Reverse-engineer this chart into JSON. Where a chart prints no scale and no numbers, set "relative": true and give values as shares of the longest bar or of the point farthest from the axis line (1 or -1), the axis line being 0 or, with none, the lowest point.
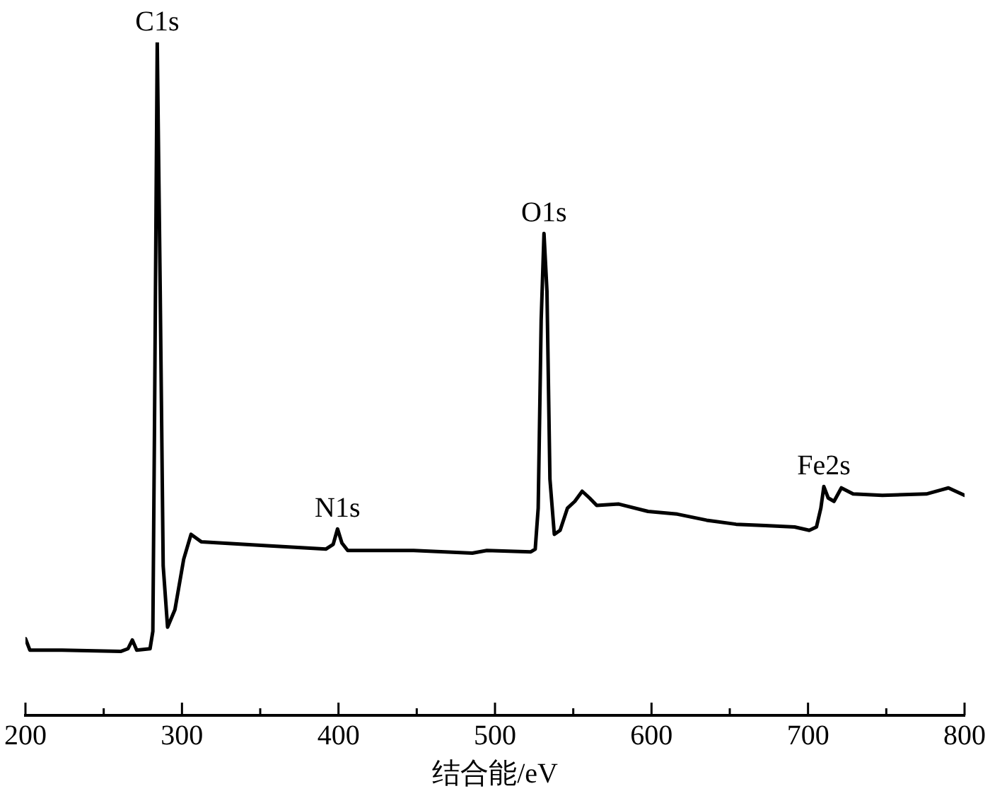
{
  "chart_data": {
    "type": "line",
    "xlabel": "结合能/eV",
    "relative": true,
    "xlim": [
      200,
      800
    ],
    "xticks": [
      200,
      {
        "value": 250,
        "label": null
      },
      300,
      {
        "value": 350,
        "label": null
      },
      400,
      {
        "value": 450,
        "label": null
      },
      500,
      {
        "value": 550,
        "label": null
      },
      600,
      {
        "value": 650,
        "label": null
      },
      700,
      {
        "value": 750,
        "label": null
      },
      800
    ],
    "annotations": [
      {
        "text": "C1s",
        "x": 284.2,
        "y": 1
      },
      {
        "text": "N1s",
        "x": 399.4,
        "y": 0.277
      },
      {
        "text": "O1s",
        "x": 531.3,
        "y": 0.716
      },
      {
        "text": "Fe2s",
        "x": 710.1,
        "y": 0.34
      }
    ],
    "grid": false,
    "legend": false,
    "marker": "none",
    "line_style": "solid",
    "series": [
      {
        "color": "#000000",
        "x": [
          200,
          202.8,
          223.4,
          260.8,
          265.5,
          268.3,
          271.1,
          279.6,
          281.4,
          282.4,
          284.2,
          286.1,
          288.0,
          290.8,
          295.5,
          301.1,
          305.8,
          312.3,
          354.4,
          391.9,
          396.6,
          399.4,
          402.2,
          405.9,
          448.0,
          485.5,
          494.8,
          522.9,
          525.7,
          527.6,
          529.5,
          531.3,
          533.2,
          535.1,
          537.9,
          541.6,
          546.3,
          551.0,
          555.7,
          560.4,
          565.0,
          579.1,
          597.8,
          616.5,
          635.2,
          654.0,
          672.7,
          691.4,
          700.8,
          705.4,
          708.2,
          710.1,
          712.9,
          716.6,
          721.3,
          728.8,
          747.5,
          775.6,
          785.0,
          789.7,
          800
        ],
        "values": [
          0.114,
          0.097,
          0.097,
          0.095,
          0.099,
          0.112,
          0.097,
          0.099,
          0.125,
          0.415,
          1,
          0.63,
          0.222,
          0.131,
          0.157,
          0.232,
          0.269,
          0.258,
          0.252,
          0.247,
          0.254,
          0.277,
          0.256,
          0.245,
          0.245,
          0.241,
          0.245,
          0.243,
          0.247,
          0.308,
          0.587,
          0.716,
          0.63,
          0.351,
          0.269,
          0.275,
          0.308,
          0.318,
          0.333,
          0.323,
          0.312,
          0.314,
          0.303,
          0.299,
          0.29,
          0.284,
          0.282,
          0.28,
          0.275,
          0.28,
          0.308,
          0.34,
          0.323,
          0.318,
          0.338,
          0.329,
          0.327,
          0.329,
          0.335,
          0.338,
          0.327
        ]
      }
    ]
  }
}
